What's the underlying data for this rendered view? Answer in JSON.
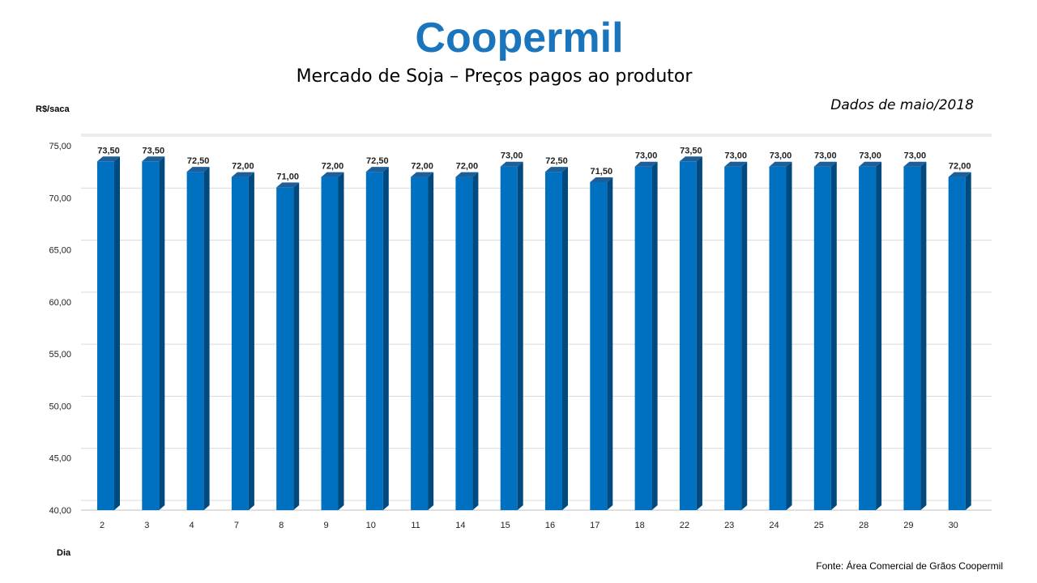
{
  "logo": {
    "text": "Coopermil",
    "color": "#1b75bc"
  },
  "header": {
    "title": "Mercado de Soja – Preços pagos ao produtor",
    "subtitle": "Dados de maio/2018"
  },
  "footer": {
    "source": "Fonte:  Área Comercial de Grãos Coopermil"
  },
  "chart_data": {
    "type": "bar",
    "title": "Mercado de Soja – Preços pagos ao produtor",
    "ylabel": "R$/saca",
    "xlabel": "Dia",
    "categories": [
      "2",
      "3",
      "4",
      "7",
      "8",
      "9",
      "10",
      "11",
      "14",
      "15",
      "16",
      "17",
      "18",
      "22",
      "23",
      "24",
      "25",
      "28",
      "29",
      "30"
    ],
    "values": [
      73.5,
      73.5,
      72.5,
      72.0,
      71.0,
      72.0,
      72.5,
      72.0,
      72.0,
      73.0,
      72.5,
      71.5,
      73.0,
      73.5,
      73.0,
      73.0,
      73.0,
      73.0,
      73.0,
      72.0
    ],
    "value_labels": [
      "73,50",
      "73,50",
      "72,50",
      "72,00",
      "71,00",
      "72,00",
      "72,50",
      "72,00",
      "72,00",
      "73,00",
      "72,50",
      "71,50",
      "73,00",
      "73,50",
      "73,00",
      "73,00",
      "73,00",
      "73,00",
      "73,00",
      "72,00"
    ],
    "ylim": [
      40,
      75
    ],
    "yticks": [
      40,
      45,
      50,
      55,
      60,
      65,
      70,
      75
    ],
    "ytick_labels": [
      "40,00",
      "45,00",
      "50,00",
      "55,00",
      "60,00",
      "65,00",
      "70,00",
      "75,00"
    ],
    "grid": true,
    "bar_color": "#0070c0",
    "bar_side_color": "#004a80",
    "bar_top_color": "#1f5f99"
  }
}
